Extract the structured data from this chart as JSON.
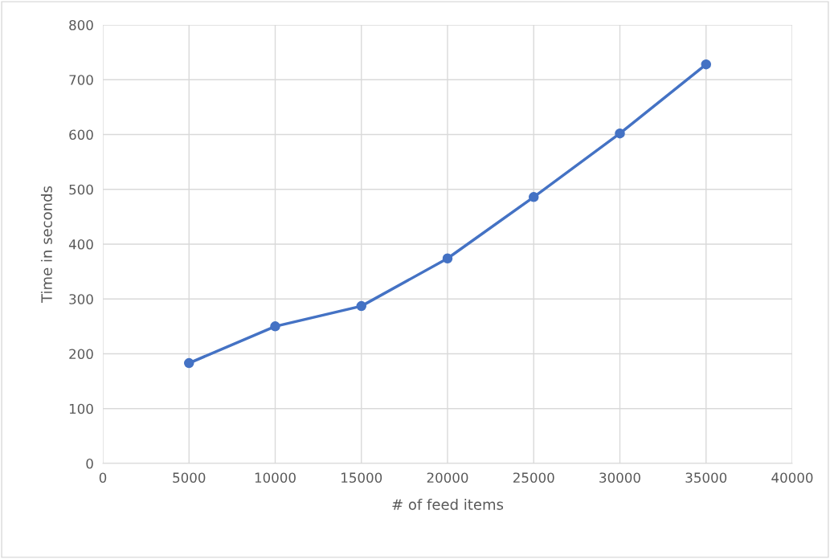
{
  "chart_data": {
    "type": "line",
    "xlabel": "# of feed items",
    "ylabel": "Time in seconds",
    "x": [
      5000,
      10000,
      15000,
      20000,
      25000,
      30000,
      35000
    ],
    "series": [
      {
        "color": "#4472c4",
        "values": [
          183,
          250,
          287,
          374,
          486,
          602,
          728
        ]
      }
    ],
    "xlim": [
      0,
      40000
    ],
    "xticks": [
      0,
      5000,
      10000,
      15000,
      20000,
      25000,
      30000,
      35000,
      40000
    ],
    "ylim": [
      0,
      800
    ],
    "yticks": [
      0,
      100,
      200,
      300,
      400,
      500,
      600,
      700,
      800
    ],
    "grid": true,
    "marker": "circle",
    "line_style": "solid"
  }
}
